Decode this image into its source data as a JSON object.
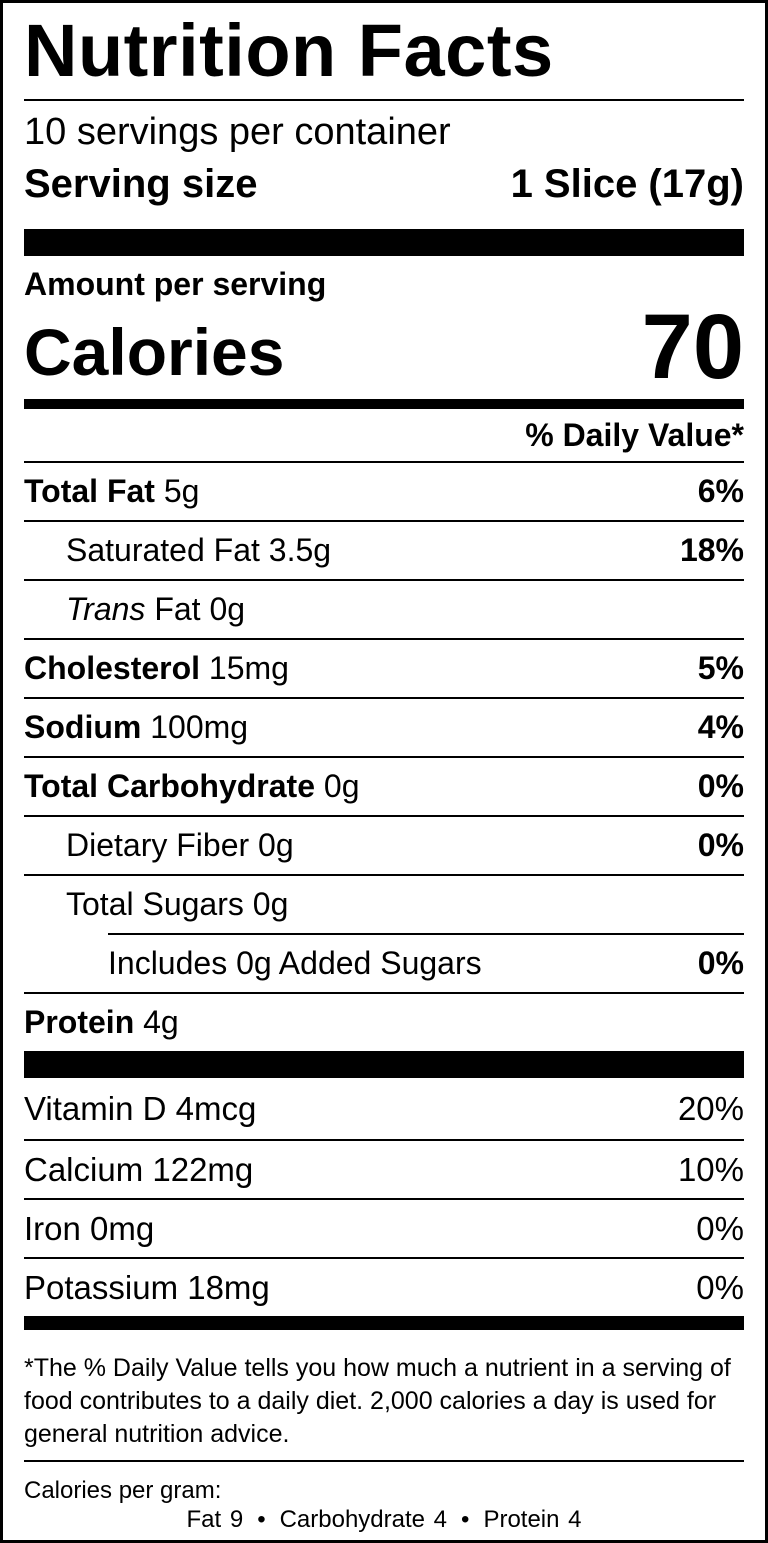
{
  "title": "Nutrition Facts",
  "servings_per_container": "10 servings per container",
  "serving_size": {
    "label": "Serving size",
    "value": "1 Slice (17g)"
  },
  "amount_per_serving": "Amount per serving",
  "calories": {
    "label": "Calories",
    "value": "70"
  },
  "daily_value_header": "% Daily Value*",
  "nutrients": {
    "total_fat": {
      "name": "Total Fat",
      "amount": "5g",
      "dv": "6%"
    },
    "saturated_fat": {
      "name": "Saturated Fat",
      "amount": "3.5g",
      "dv": "18%"
    },
    "trans_fat": {
      "name_italic": "Trans",
      "name": "Fat",
      "amount": "0g"
    },
    "cholesterol": {
      "name": "Cholesterol",
      "amount": "15mg",
      "dv": "5%"
    },
    "sodium": {
      "name": "Sodium",
      "amount": "100mg",
      "dv": "4%"
    },
    "total_carbohydrate": {
      "name": "Total Carbohydrate",
      "amount": "0g",
      "dv": "0%"
    },
    "dietary_fiber": {
      "name": "Dietary Fiber",
      "amount": "0g",
      "dv": "0%"
    },
    "total_sugars": {
      "name": "Total Sugars",
      "amount": "0g"
    },
    "added_sugars": {
      "text": "Includes 0g Added Sugars",
      "dv": "0%"
    },
    "protein": {
      "name": "Protein",
      "amount": "4g"
    }
  },
  "vitamins": [
    {
      "name": "Vitamin D 4mcg",
      "dv": "20%"
    },
    {
      "name": "Calcium 122mg",
      "dv": "10%"
    },
    {
      "name": "Iron 0mg",
      "dv": "0%"
    },
    {
      "name": "Potassium 18mg",
      "dv": "0%"
    }
  ],
  "footnote": "*The % Daily Value tells you how much a nutrient in a serving of food contributes to a daily diet. 2,000 calories a day is used for general nutrition advice.",
  "calories_per_gram": {
    "label": "Calories per gram:",
    "fat": "Fat 9",
    "carbohydrate": "Carbohydrate 4",
    "protein": "Protein 4",
    "separator": "•"
  }
}
